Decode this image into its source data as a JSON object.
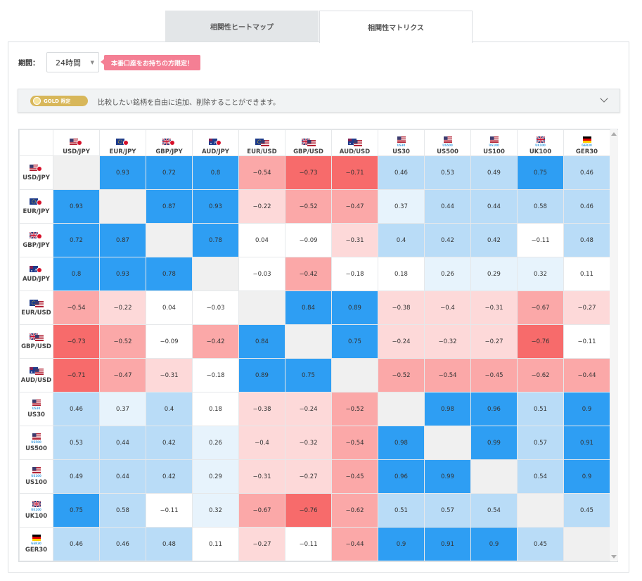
{
  "tabs": [
    {
      "label": "相関性ヒートマップ",
      "active": false
    },
    {
      "label": "相関性マトリクス",
      "active": true
    }
  ],
  "period": {
    "label": "期間：",
    "selected": "24時間"
  },
  "badge": "本番口座をお持ちの方限定！",
  "gold_banner": {
    "pill": "GOLD 限定",
    "text": "比較したい銘柄を自由に追加、削除することができます。"
  },
  "colors": {
    "strong_blue": "#2e9ef3",
    "light_blue": "#b9dcf7",
    "pale_blue": "#e7f3fc",
    "strong_red": "#f76b6b",
    "mid_red": "#fba8a8",
    "light_red": "#fdd9d9",
    "diag": "#f0f0f0",
    "white": "#ffffff"
  },
  "instruments": [
    {
      "label": "USD/JPY",
      "flag": "usjp"
    },
    {
      "label": "EUR/JPY",
      "flag": "eujp"
    },
    {
      "label": "GBP/JPY",
      "flag": "gbjp"
    },
    {
      "label": "AUD/JPY",
      "flag": "aujp"
    },
    {
      "label": "EUR/USD",
      "flag": "euus"
    },
    {
      "label": "GBP/USD",
      "flag": "gbus"
    },
    {
      "label": "AUD/USD",
      "flag": "auus"
    },
    {
      "label": "US30",
      "flag": "us",
      "sub": "US30"
    },
    {
      "label": "US500",
      "flag": "us",
      "sub": "US500"
    },
    {
      "label": "US100",
      "flag": "us",
      "sub": "US100"
    },
    {
      "label": "UK100",
      "flag": "gb",
      "sub": "UK100"
    },
    {
      "label": "GER30",
      "flag": "de",
      "sub": "GER30"
    }
  ],
  "matrix": [
    [
      null,
      "0.93",
      "0.72",
      "0.8",
      "−0.54",
      "−0.73",
      "−0.71",
      "0.46",
      "0.53",
      "0.49",
      "0.75",
      "0.46"
    ],
    [
      "0.93",
      null,
      "0.87",
      "0.93",
      "−0.22",
      "−0.52",
      "−0.47",
      "0.37",
      "0.44",
      "0.44",
      "0.58",
      "0.46"
    ],
    [
      "0.72",
      "0.87",
      null,
      "0.78",
      "0.04",
      "−0.09",
      "−0.31",
      "0.4",
      "0.42",
      "0.42",
      "−0.11",
      "0.48"
    ],
    [
      "0.8",
      "0.93",
      "0.78",
      null,
      "−0.03",
      "−0.42",
      "−0.18",
      "0.18",
      "0.26",
      "0.29",
      "0.32",
      "0.11"
    ],
    [
      "−0.54",
      "−0.22",
      "0.04",
      "−0.03",
      null,
      "0.84",
      "0.89",
      "−0.38",
      "−0.4",
      "−0.31",
      "−0.67",
      "−0.27"
    ],
    [
      "−0.73",
      "−0.52",
      "−0.09",
      "−0.42",
      "0.84",
      null,
      "0.75",
      "−0.24",
      "−0.32",
      "−0.27",
      "−0.76",
      "−0.11"
    ],
    [
      "−0.71",
      "−0.47",
      "−0.31",
      "−0.18",
      "0.89",
      "0.75",
      null,
      "−0.52",
      "−0.54",
      "−0.45",
      "−0.62",
      "−0.44"
    ],
    [
      "0.46",
      "0.37",
      "0.4",
      "0.18",
      "−0.38",
      "−0.24",
      "−0.52",
      null,
      "0.98",
      "0.96",
      "0.51",
      "0.9"
    ],
    [
      "0.53",
      "0.44",
      "0.42",
      "0.26",
      "−0.4",
      "−0.32",
      "−0.54",
      "0.98",
      null,
      "0.99",
      "0.57",
      "0.91"
    ],
    [
      "0.49",
      "0.44",
      "0.42",
      "0.29",
      "−0.31",
      "−0.27",
      "−0.45",
      "0.96",
      "0.99",
      null,
      "0.54",
      "0.9"
    ],
    [
      "0.75",
      "0.58",
      "−0.11",
      "0.32",
      "−0.67",
      "−0.76",
      "−0.62",
      "0.51",
      "0.57",
      "0.54",
      null,
      "0.45"
    ],
    [
      "0.46",
      "0.46",
      "0.48",
      "0.11",
      "−0.27",
      "−0.11",
      "−0.44",
      "0.9",
      "0.91",
      "0.9",
      "0.45",
      null
    ]
  ]
}
